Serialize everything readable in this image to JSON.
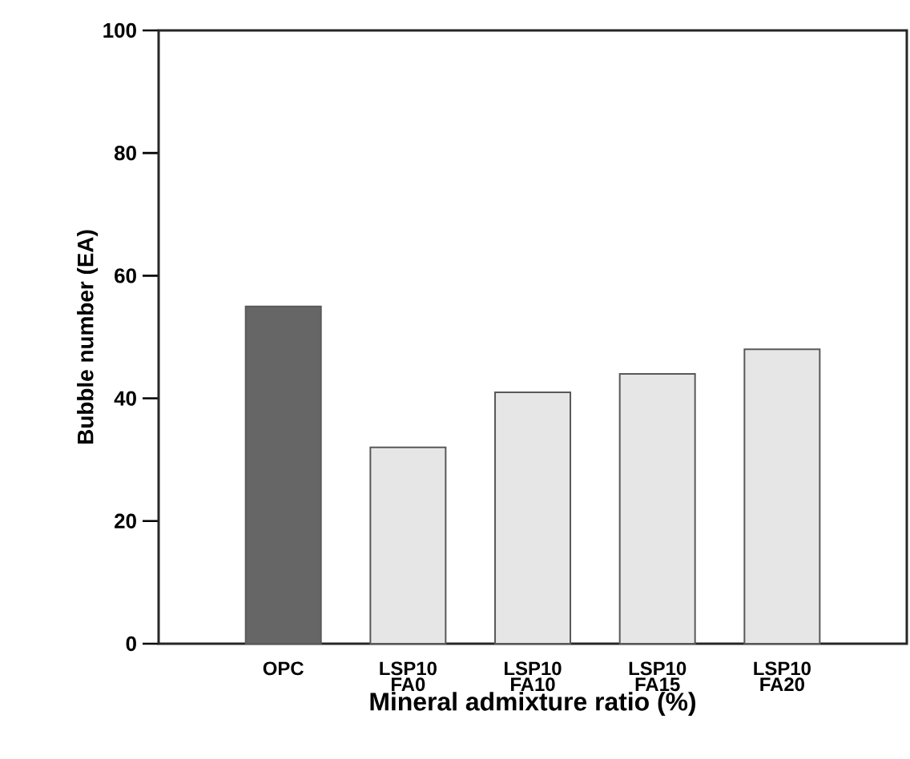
{
  "chart_data": {
    "type": "bar",
    "xlabel": "Mineral admixture ratio (%)",
    "ylabel": "Bubble number (EA)",
    "categories": [
      "OPC",
      "LSP10 FA0",
      "LSP10 FA10",
      "LSP10 FA15",
      "LSP10 FA20"
    ],
    "values": [
      55,
      32,
      41,
      44,
      48
    ],
    "colors": [
      "#666666",
      "#e6e6e6",
      "#e6e6e6",
      "#e6e6e6",
      "#e6e6e6"
    ],
    "ylim": [
      0,
      100
    ],
    "yticks": [
      0,
      20,
      40,
      60,
      80,
      100
    ],
    "grid": false
  }
}
